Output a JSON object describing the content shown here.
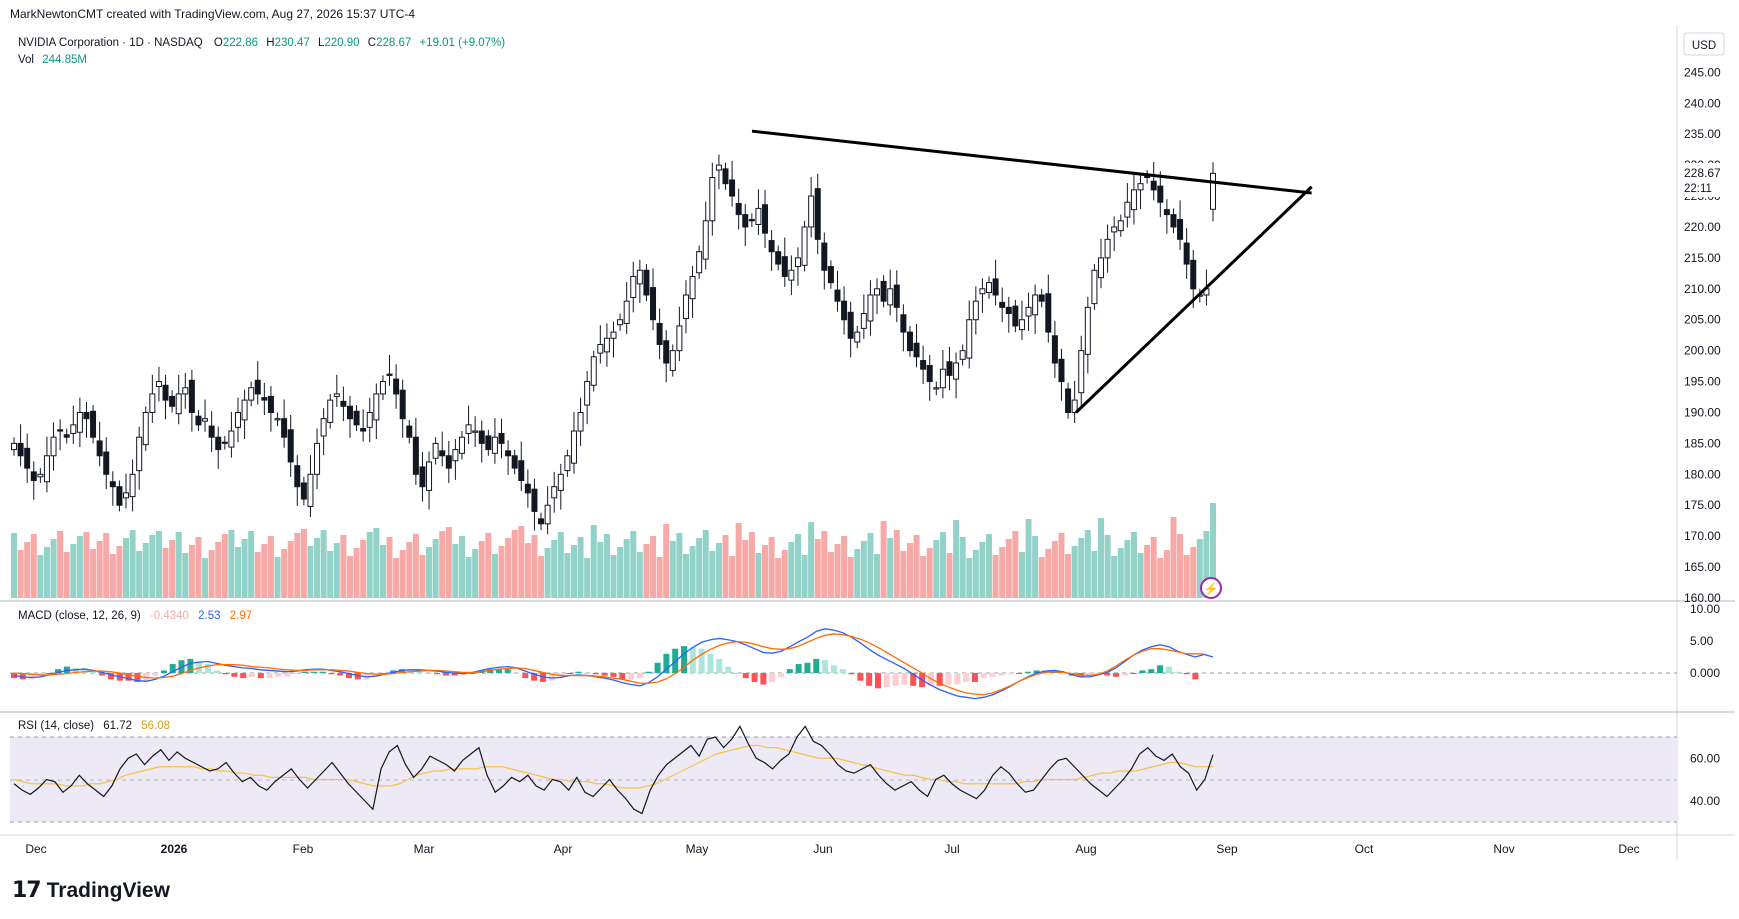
{
  "header": {
    "credit": "MarkNewtonCMT created with TradingView.com, Aug 27, 2026 15:37 UTC-4",
    "symbol": "NVIDIA Corporation · 1D · NASDAQ",
    "ohlc": [
      {
        "k": "O",
        "v": "222.86"
      },
      {
        "k": "H",
        "v": "230.47"
      },
      {
        "k": "L",
        "v": "220.90"
      },
      {
        "k": "C",
        "v": "228.67"
      }
    ],
    "change": "+19.01 (+9.07%)",
    "vol_label": "Vol",
    "vol_value": "244.85M"
  },
  "price_axis": {
    "currency": "USD",
    "last_price": "228.67",
    "countdown": "22:11",
    "ticks": [
      "245.00",
      "240.00",
      "235.00",
      "230.00",
      "225.00",
      "220.00",
      "215.00",
      "210.00",
      "205.00",
      "200.00",
      "195.00",
      "190.00",
      "185.00",
      "180.00",
      "175.00",
      "170.00",
      "165.00",
      "160.00"
    ]
  },
  "macd": {
    "label": "MACD (close, 12, 26, 9)",
    "hist_value": "-0.4340",
    "macd_value": "2.53",
    "signal_value": "2.97",
    "ticks": [
      "10.00",
      "5.00",
      "0.000"
    ]
  },
  "rsi": {
    "label": "RSI (14, close)",
    "rsi_value": "61.72",
    "ma_value": "56.08",
    "ticks": [
      "60.00",
      "40.00"
    ]
  },
  "time_axis": [
    "Dec",
    "2026",
    "Feb",
    "Mar",
    "Apr",
    "May",
    "Jun",
    "Jul",
    "Aug",
    "Sep",
    "Oct",
    "Nov",
    "Dec"
  ],
  "footer": {
    "brand": "TradingView",
    "logo_mark": "17"
  },
  "colors": {
    "up": "#089981",
    "down": "#f23645",
    "vol_up": "#92d2c8",
    "vol_down": "#f7a9a7",
    "macd_line": "#2962ff",
    "signal_line": "#ff6d00",
    "rsi_line": "#131722",
    "rsi_ma": "#f6c443",
    "rsi_band": "#ede9f7"
  },
  "chart_data": {
    "type": "candlestick",
    "symbol": "NVDA",
    "interval": "1D",
    "ylim": [
      160,
      247
    ],
    "last_bar": {
      "open": 222.86,
      "high": 230.47,
      "low": 220.9,
      "close": 228.67,
      "change": 19.01,
      "change_pct": 9.07,
      "volume": "244.85M"
    },
    "trendlines": [
      {
        "name": "upper",
        "from_date": "2026-05-14",
        "from_price": 235.5,
        "to_date": "2026-09-24",
        "to_price": 225.5
      },
      {
        "name": "lower",
        "from_date": "2026-07-30",
        "from_price": 190.0,
        "to_date": "2026-09-24",
        "to_price": 226.5
      }
    ],
    "closes": [
      185,
      183,
      181,
      179,
      180,
      183,
      186,
      187,
      186,
      188,
      190,
      189,
      186,
      183,
      180,
      178,
      175,
      177,
      180,
      186,
      190,
      193,
      195,
      192,
      191,
      193,
      194,
      190,
      188,
      189,
      186,
      184,
      185,
      187,
      190,
      192,
      194,
      193,
      192,
      190,
      189,
      186,
      182,
      178,
      176,
      180,
      185,
      189,
      192,
      193,
      191,
      189,
      188,
      187,
      190,
      193,
      195,
      196,
      193,
      189,
      186,
      180,
      178,
      182,
      185,
      183,
      181,
      184,
      186,
      188,
      187,
      185,
      184,
      186,
      185,
      183,
      181,
      179,
      177,
      174,
      172,
      175,
      178,
      180,
      183,
      187,
      190,
      195,
      199,
      201,
      202,
      203,
      205,
      208,
      212,
      213,
      209,
      205,
      201,
      198,
      200,
      204,
      209,
      212,
      216,
      221,
      228,
      230,
      227,
      225,
      222,
      220,
      221,
      223,
      219,
      216,
      214,
      212,
      213,
      215,
      220,
      225,
      218,
      213,
      211,
      208,
      205,
      202,
      203,
      206,
      209,
      210,
      208,
      210,
      207,
      203,
      200,
      199,
      197,
      195,
      194,
      197,
      196,
      198,
      200,
      205,
      208,
      210,
      211,
      209,
      207,
      206,
      204,
      205,
      207,
      209,
      208,
      203,
      198,
      195,
      190,
      192,
      200,
      207,
      213,
      215,
      218,
      220,
      221,
      224,
      226,
      227,
      228,
      226,
      224,
      222,
      220,
      218,
      214,
      210,
      209,
      210,
      228.67
    ],
    "macd": [
      -0.4,
      -0.6,
      -0.7,
      -0.6,
      -0.3,
      0.1,
      0.4,
      0.5,
      0.6,
      0.4,
      0.1,
      -0.3,
      -0.6,
      -0.9,
      -1.2,
      -1.3,
      -1.0,
      -0.5,
      0.2,
      0.9,
      1.5,
      1.7,
      1.8,
      1.5,
      1.2,
      1.0,
      0.8,
      0.7,
      0.5,
      0.4,
      0.3,
      0.2,
      0.3,
      0.5,
      0.6,
      0.6,
      0.4,
      0.2,
      -0.1,
      -0.4,
      -0.6,
      -0.5,
      -0.2,
      0.1,
      0.4,
      0.5,
      0.5,
      0.4,
      0.3,
      0.1,
      0.0,
      -0.1,
      0.1,
      0.4,
      0.7,
      0.9,
      1.0,
      0.8,
      0.3,
      -0.2,
      -0.6,
      -0.8,
      -0.7,
      -0.4,
      -0.3,
      -0.4,
      -0.6,
      -0.8,
      -1.1,
      -1.5,
      -1.8,
      -2.0,
      -1.5,
      -0.6,
      0.6,
      1.8,
      3.0,
      4.0,
      4.8,
      5.2,
      5.4,
      5.2,
      4.9,
      4.4,
      3.8,
      3.2,
      3.1,
      3.4,
      4.1,
      4.9,
      5.6,
      6.5,
      6.9,
      6.7,
      6.3,
      5.6,
      4.7,
      3.7,
      2.8,
      2.1,
      1.4,
      0.7,
      -0.2,
      -1.1,
      -1.9,
      -2.6,
      -3.1,
      -3.6,
      -3.8,
      -4.0,
      -3.8,
      -3.4,
      -2.8,
      -2.1,
      -1.3,
      -0.6,
      0.0,
      0.3,
      0.4,
      0.2,
      -0.3,
      -0.6,
      -0.6,
      -0.3,
      0.1,
      0.8,
      1.8,
      2.8,
      3.6,
      4.1,
      4.4,
      4.1,
      3.4,
      2.9,
      2.5,
      2.9,
      2.5
    ],
    "signal": [
      0.0,
      -0.1,
      -0.2,
      -0.3,
      -0.3,
      -0.2,
      -0.1,
      0.1,
      0.2,
      0.3,
      0.3,
      0.2,
      0.0,
      -0.3,
      -0.5,
      -0.7,
      -0.8,
      -0.7,
      -0.5,
      -0.1,
      0.4,
      0.8,
      1.1,
      1.3,
      1.3,
      1.3,
      1.2,
      1.0,
      0.9,
      0.8,
      0.6,
      0.5,
      0.4,
      0.4,
      0.5,
      0.5,
      0.5,
      0.4,
      0.3,
      0.1,
      -0.1,
      -0.2,
      -0.2,
      -0.1,
      0.1,
      0.2,
      0.3,
      0.4,
      0.4,
      0.3,
      0.2,
      0.1,
      0.1,
      0.2,
      0.4,
      0.6,
      0.7,
      0.8,
      0.7,
      0.4,
      0.1,
      -0.2,
      -0.4,
      -0.4,
      -0.4,
      -0.4,
      -0.5,
      -0.6,
      -0.8,
      -1.0,
      -1.3,
      -1.6,
      -1.6,
      -1.4,
      -0.9,
      -0.1,
      0.9,
      2.0,
      2.9,
      3.7,
      4.3,
      4.7,
      4.9,
      4.8,
      4.5,
      4.1,
      3.8,
      3.7,
      3.8,
      4.2,
      4.8,
      5.4,
      5.9,
      6.1,
      6.0,
      5.7,
      5.3,
      4.7,
      4.0,
      3.2,
      2.4,
      1.6,
      0.8,
      0.0,
      -0.9,
      -1.6,
      -2.2,
      -2.7,
      -3.1,
      -3.3,
      -3.4,
      -3.1,
      -2.6,
      -2.0,
      -1.3,
      -0.7,
      -0.2,
      0.1,
      0.2,
      0.1,
      -0.1,
      -0.3,
      -0.4,
      -0.2,
      0.3,
      1.1,
      2.0,
      2.8,
      3.4,
      3.8,
      3.8,
      3.6,
      3.3,
      3.0,
      3.0,
      2.97
    ],
    "rsi": [
      48,
      45,
      43,
      46,
      50,
      49,
      44,
      47,
      52,
      48,
      45,
      42,
      47,
      55,
      60,
      62,
      57,
      61,
      64,
      59,
      63,
      60,
      58,
      56,
      54,
      55,
      58,
      53,
      49,
      51,
      47,
      45,
      49,
      52,
      55,
      50,
      46,
      50,
      54,
      58,
      53,
      48,
      44,
      40,
      36,
      55,
      63,
      66,
      57,
      51,
      55,
      61,
      59,
      57,
      54,
      59,
      62,
      65,
      52,
      44,
      47,
      51,
      49,
      52,
      47,
      45,
      50,
      49,
      45,
      51,
      44,
      42,
      46,
      50,
      45,
      41,
      36,
      34,
      45,
      52,
      57,
      60,
      63,
      66,
      61,
      69,
      70,
      65,
      69,
      75,
      67,
      60,
      58,
      55,
      59,
      62,
      70,
      75,
      68,
      66,
      62,
      57,
      54,
      53,
      55,
      57,
      52,
      48,
      45,
      47,
      49,
      45,
      42,
      50,
      52,
      48,
      45,
      43,
      41,
      45,
      52,
      56,
      53,
      48,
      44,
      45,
      50,
      55,
      59,
      60,
      56,
      52,
      48,
      45,
      42,
      46,
      50,
      55,
      62,
      65,
      61,
      59,
      62,
      56,
      53,
      45,
      50,
      61.7
    ],
    "rsi_ma": [
      50,
      49,
      48,
      48,
      48,
      48,
      47,
      47,
      47,
      48,
      48,
      49,
      50,
      52,
      53,
      54,
      55,
      56,
      56,
      56,
      56,
      56,
      55,
      55,
      54,
      54,
      53,
      53,
      52,
      52,
      51,
      51,
      51,
      51,
      51,
      50,
      50,
      50,
      50,
      50,
      49,
      48,
      47,
      47,
      47,
      48,
      50,
      52,
      53,
      54,
      54,
      55,
      55,
      55,
      55,
      56,
      56,
      56,
      55,
      54,
      53,
      52,
      51,
      50,
      50,
      49,
      49,
      49,
      48,
      48,
      47,
      46,
      46,
      46,
      47,
      48,
      50,
      52,
      54,
      56,
      58,
      60,
      62,
      63,
      64,
      65,
      66,
      66,
      65,
      65,
      64,
      63,
      62,
      61,
      60,
      60,
      60,
      59,
      58,
      57,
      56,
      55,
      54,
      53,
      52,
      52,
      51,
      50,
      50,
      49,
      49,
      48,
      48,
      48,
      48,
      48,
      48,
      48,
      49,
      49,
      50,
      50,
      50,
      50,
      50,
      51,
      52,
      53,
      53,
      54,
      54,
      54,
      55,
      56,
      57,
      58,
      58,
      57,
      56,
      56,
      56.08
    ]
  }
}
